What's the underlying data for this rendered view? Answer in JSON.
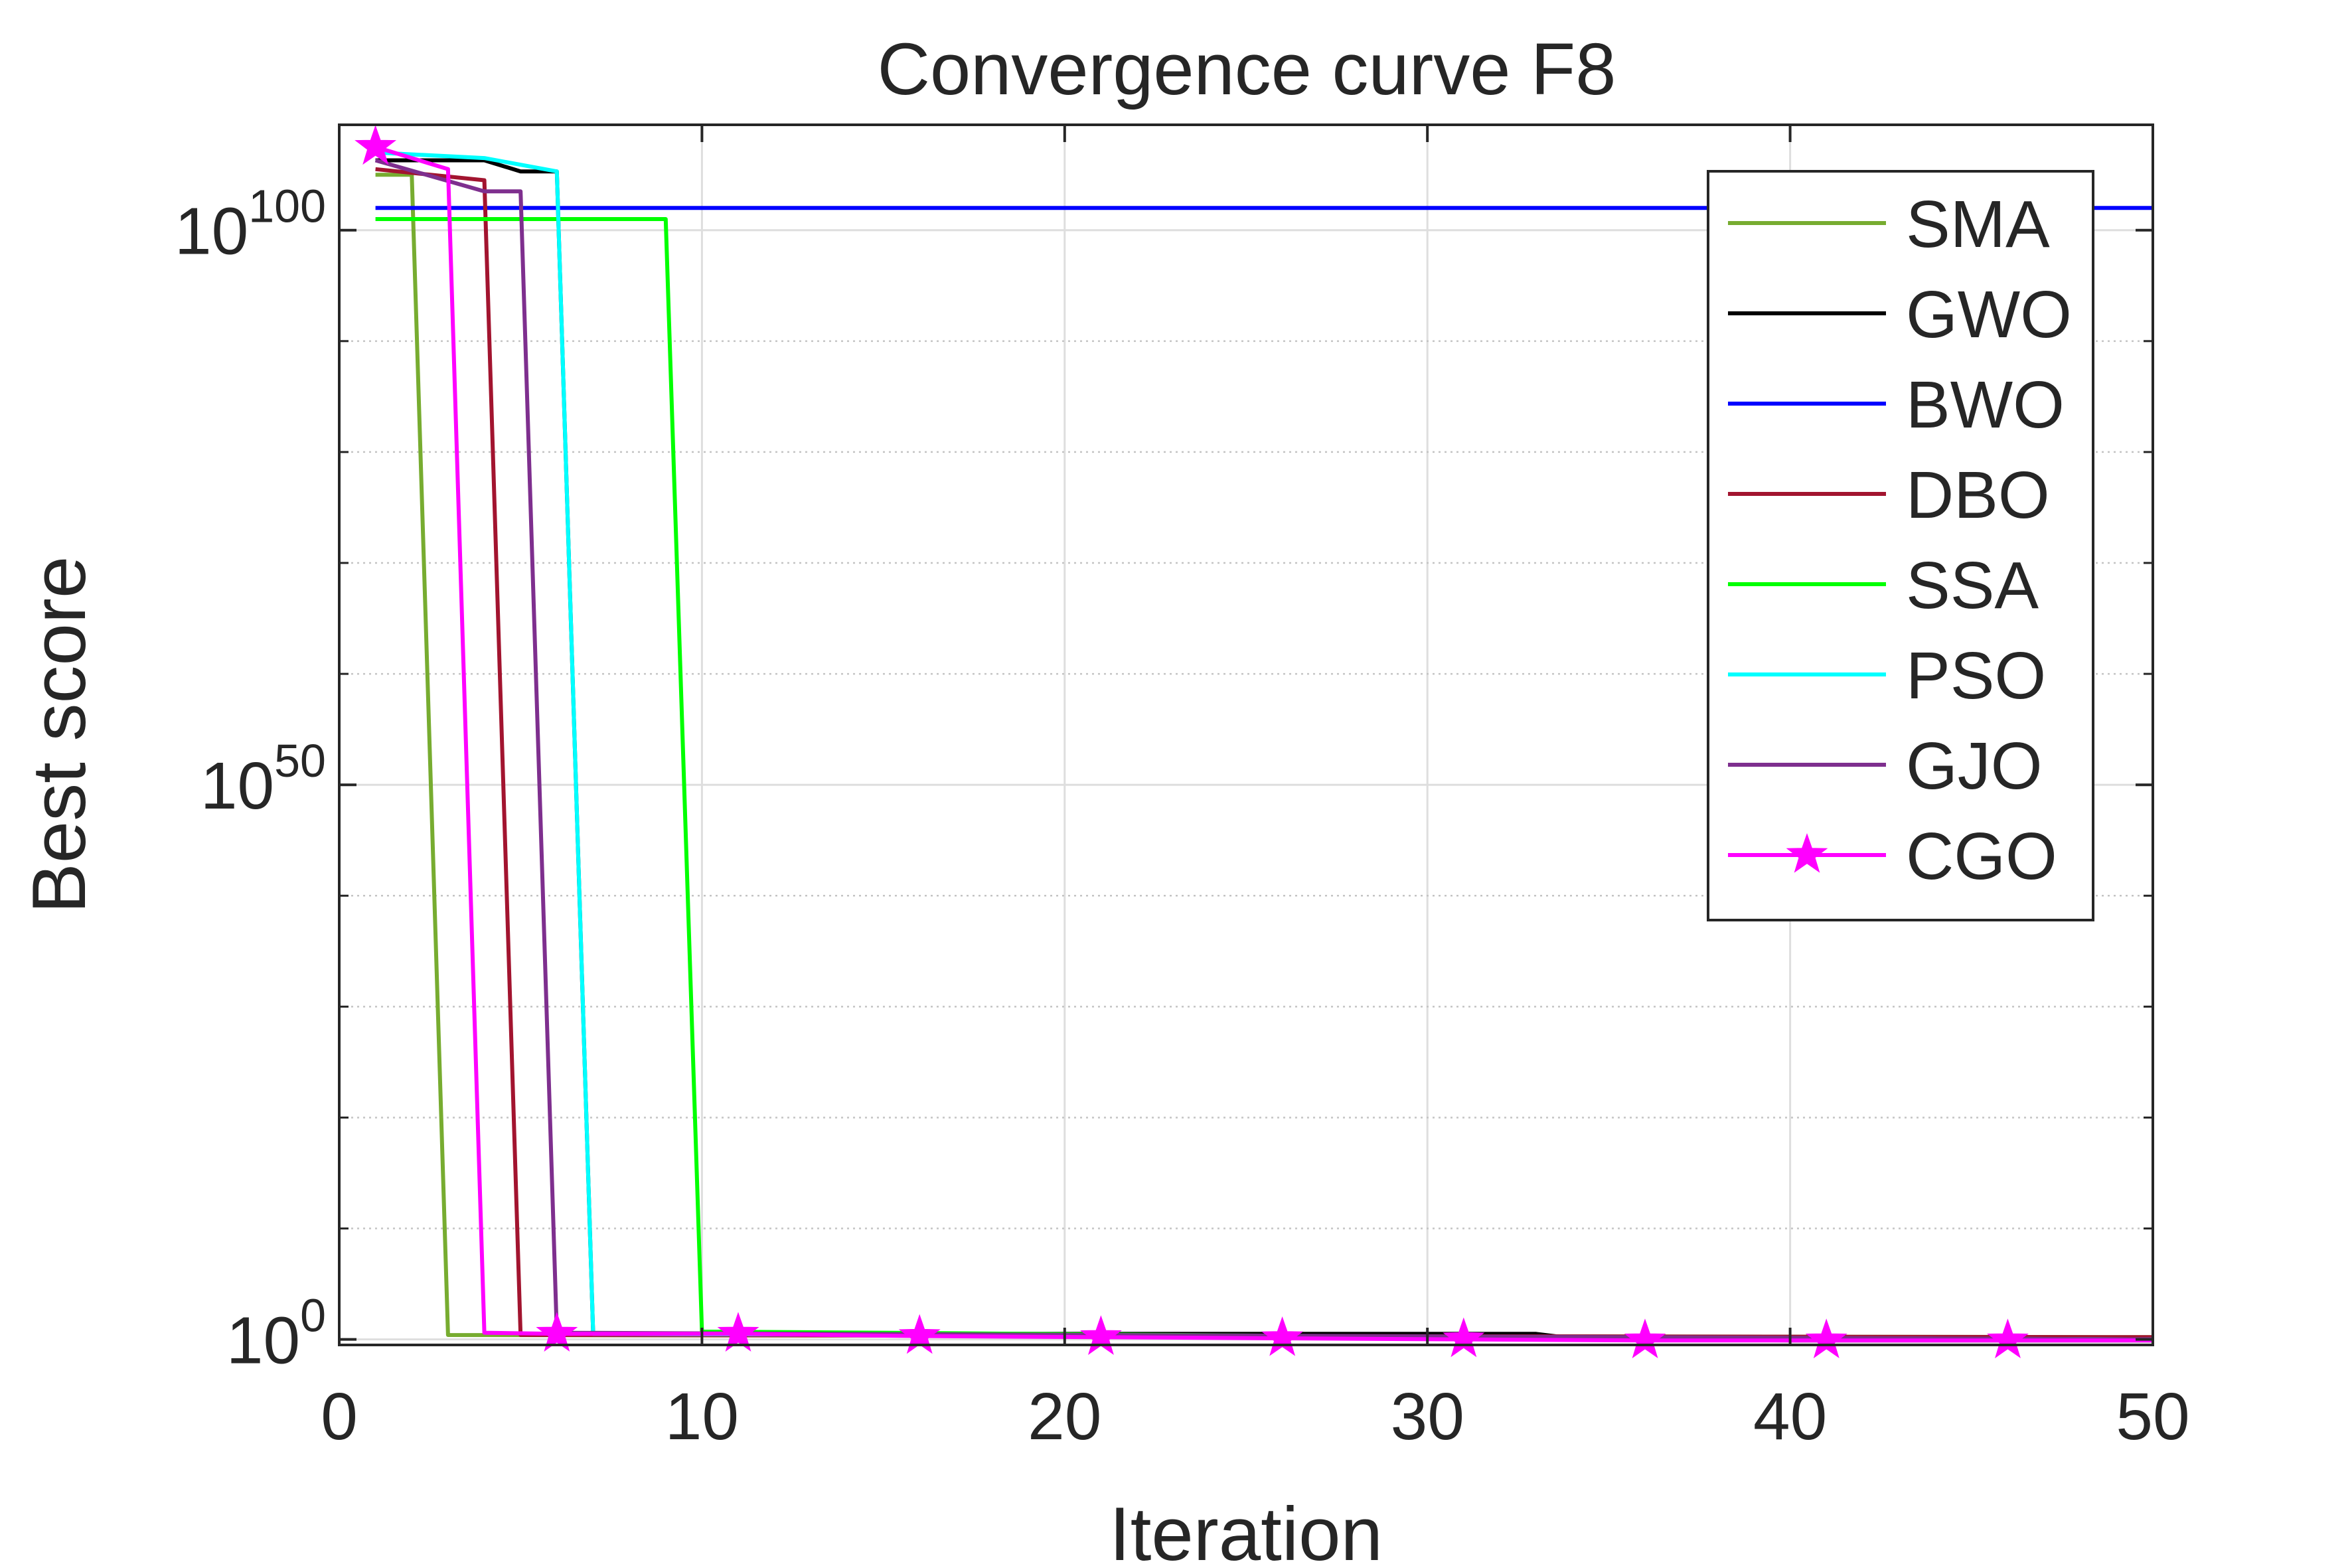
{
  "chart_data": {
    "type": "line",
    "title": "Convergence curve F8",
    "xlabel": "Iteration",
    "ylabel": "Best score",
    "xlim": [
      0,
      50
    ],
    "ylim_log10": [
      -0.5,
      109.5
    ],
    "y_scale": "log",
    "grid": true,
    "legend_position": "top-right",
    "x_ticks": [
      0,
      10,
      20,
      30,
      40,
      50
    ],
    "x_tick_labels": [
      "0",
      "10",
      "20",
      "30",
      "40",
      "50"
    ],
    "y_ticks_log10": [
      0,
      50,
      100
    ],
    "y_tick_labels": [
      {
        "base": "10",
        "exp": "0"
      },
      {
        "base": "10",
        "exp": "50"
      },
      {
        "base": "10",
        "exp": "100"
      }
    ],
    "y_minor_ticks_log10": [
      10,
      20,
      30,
      40,
      60,
      70,
      80,
      90
    ],
    "note_y": "y values are log10(Best score)",
    "series": [
      {
        "name": "SMA",
        "color": "#77ac30",
        "marker": "none",
        "x": [
          1,
          2,
          3,
          50
        ],
        "y_log10": [
          105,
          105,
          0.4,
          0.2
        ]
      },
      {
        "name": "GWO",
        "color": "#000000",
        "marker": "none",
        "x": [
          1,
          4,
          5,
          6,
          7,
          15,
          33,
          34,
          40,
          50
        ],
        "y_log10": [
          106.3,
          106.3,
          105.3,
          105.3,
          0.5,
          0.5,
          0.5,
          0.1,
          -0.1,
          -0.1
        ]
      },
      {
        "name": "BWO",
        "color": "#0000ff",
        "marker": "none",
        "x": [
          1,
          50
        ],
        "y_log10": [
          102,
          102
        ]
      },
      {
        "name": "DBO",
        "color": "#a2142f",
        "marker": "none",
        "x": [
          1,
          4,
          5,
          50
        ],
        "y_log10": [
          105.5,
          104.5,
          0.4,
          0.2
        ]
      },
      {
        "name": "SSA",
        "color": "#00ff00",
        "marker": "none",
        "x": [
          1,
          9,
          10,
          15,
          35,
          50
        ],
        "y_log10": [
          101,
          101,
          0.7,
          0.6,
          0.1,
          0.0
        ]
      },
      {
        "name": "PSO",
        "color": "#00ffff",
        "marker": "none",
        "x": [
          1,
          4,
          6,
          7,
          50
        ],
        "y_log10": [
          107,
          106.5,
          105.3,
          0.5,
          0.0
        ]
      },
      {
        "name": "GJO",
        "color": "#7e2f8e",
        "marker": "none",
        "x": [
          1,
          4,
          5,
          6,
          50
        ],
        "y_log10": [
          106.3,
          103.5,
          103.5,
          0.6,
          0.0
        ]
      },
      {
        "name": "CGO",
        "color": "#ff00ff",
        "marker": "star",
        "x": [
          1,
          3,
          4,
          6,
          11,
          16,
          21,
          26,
          31,
          36,
          41,
          46,
          50
        ],
        "y_log10": [
          107.5,
          105.5,
          0.6,
          0.5,
          0.5,
          0.3,
          0.2,
          0.1,
          0.0,
          -0.1,
          -0.1,
          -0.1,
          -0.1
        ],
        "marker_x": [
          1,
          6,
          11,
          16,
          21,
          26,
          31,
          36,
          41,
          46
        ]
      }
    ]
  }
}
